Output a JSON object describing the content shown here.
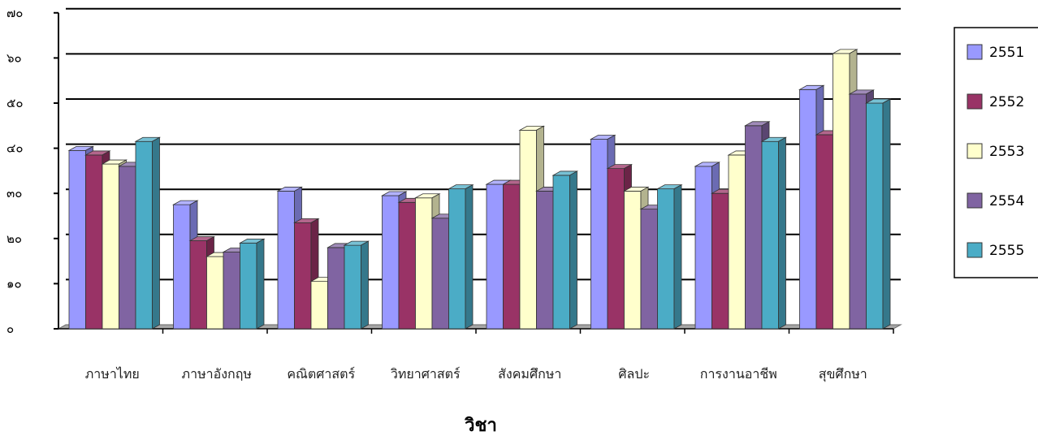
{
  "chart_data": {
    "type": "bar",
    "xlabel": "วิชา",
    "ylabel": "",
    "ylim": [
      0,
      70
    ],
    "y_ticks": [
      "๐",
      "๑๐",
      "๒๐",
      "๓๐",
      "๔๐",
      "๕๐",
      "๖๐",
      "๗๐"
    ],
    "categories": [
      "ภาษาไทย",
      "ภาษาอังกฤษ",
      "คณิตศาสตร์",
      "วิทยาศาสตร์",
      "สังคมศึกษา",
      "ศิลปะ",
      "การงานอาชีพ",
      "สุขศึกษา"
    ],
    "series": [
      {
        "name": "2551",
        "color": "#9999ff",
        "values": [
          39.5,
          27.5,
          30.5,
          29.5,
          32,
          42,
          36,
          53
        ]
      },
      {
        "name": "2552",
        "color": "#993366",
        "values": [
          38.5,
          19.5,
          23.5,
          28,
          32,
          35.5,
          30,
          43
        ]
      },
      {
        "name": "2553",
        "color": "#ffffcc",
        "values": [
          36.5,
          16,
          10.5,
          29,
          44,
          30.5,
          38.5,
          61
        ]
      },
      {
        "name": "2554",
        "color": "#8064a2",
        "values": [
          36,
          17,
          18,
          24.5,
          30.5,
          26.5,
          45,
          52
        ]
      },
      {
        "name": "2555",
        "color": "#4bacc6",
        "values": [
          41.5,
          19,
          18.5,
          31,
          34,
          31,
          41.5,
          50
        ]
      }
    ],
    "grid": true,
    "legend": "right"
  }
}
